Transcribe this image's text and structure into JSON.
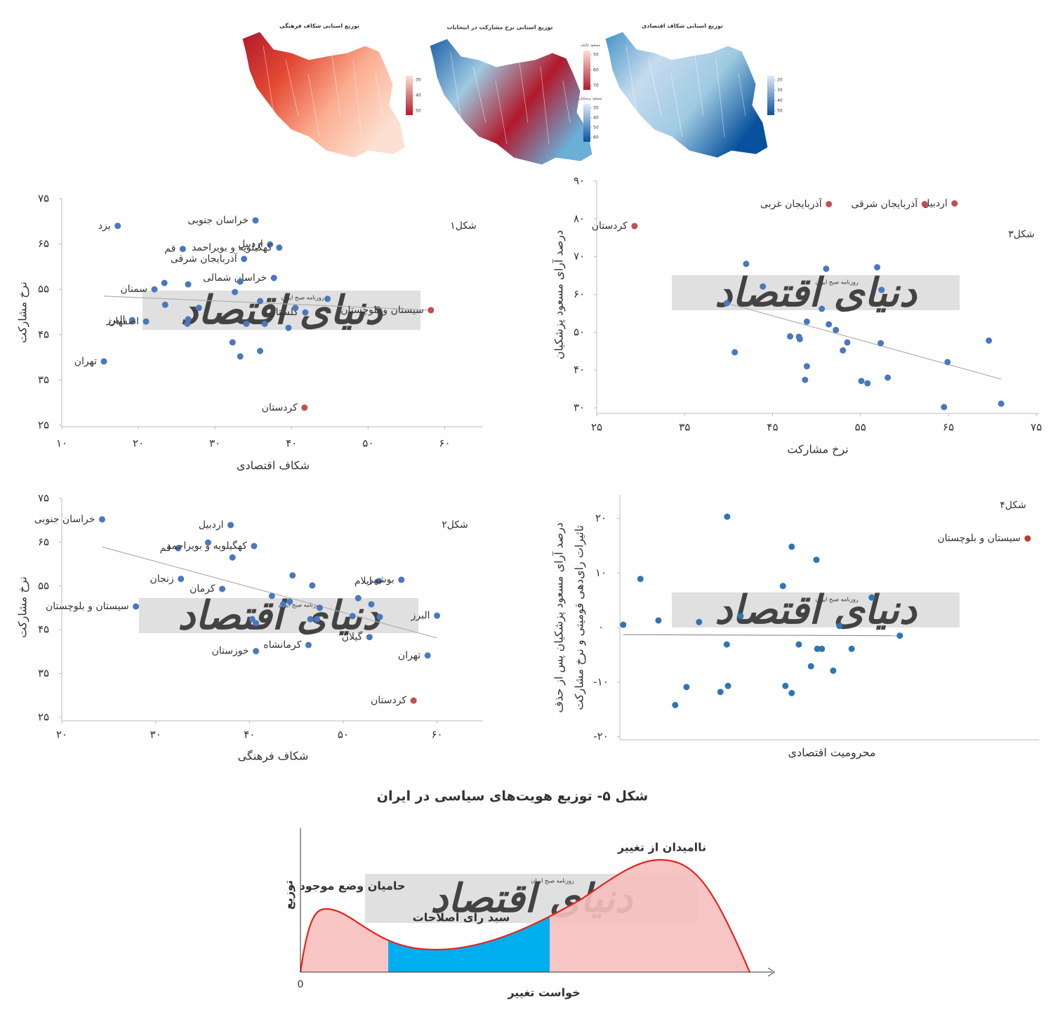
{
  "watermark": "دنیای اقتصاد",
  "watermark_sub": "روزنامه صبح ایران",
  "chart_data": [
    {
      "type": "map",
      "title": "توزیع استانی شکاف فرهنگی",
      "colors": [
        "#b2182b",
        "#e34a33",
        "#fcae91",
        "#fde0d2"
      ],
      "colorbars": [
        {
          "ticks": [
            30,
            40,
            50
          ],
          "colors": [
            "#fde0d2",
            "#b2182b"
          ]
        }
      ]
    },
    {
      "type": "map",
      "title": "توزیع استانی نرخ مشارکت در انتخابات",
      "colors": [
        "#1f5fa8",
        "#9ecae1",
        "#b2182b",
        "#6baed6"
      ],
      "colorbars": [
        {
          "title": "مسعود جلیلی",
          "ticks": [
            50,
            60,
            70
          ],
          "colors": [
            "#fde0d2",
            "#b2182b"
          ]
        },
        {
          "title": "مسعود پزشکیان",
          "ticks": [
            30,
            40,
            50,
            60
          ],
          "colors": [
            "#deebf7",
            "#08519c"
          ]
        }
      ]
    },
    {
      "type": "map",
      "title": "توزیع استانی شکاف اقتصادی",
      "colors": [
        "#4292c6",
        "#c6dbef",
        "#9ecae1",
        "#08519c"
      ],
      "colorbars": [
        {
          "ticks": [
            20,
            30,
            40,
            50
          ],
          "colors": [
            "#deebf7",
            "#08519c"
          ]
        }
      ]
    },
    {
      "type": "scatter",
      "figure": "شکل۱",
      "xlabel": "شکاف اقتصادی",
      "ylabel": "نرخ مشارکت",
      "xlim": [
        10,
        65
      ],
      "ylim": [
        25,
        75
      ],
      "xticks": [
        {
          "value": 10,
          "label": "۱۰"
        },
        {
          "value": 20,
          "label": "۲۰"
        },
        {
          "value": 30,
          "label": "۳۰"
        },
        {
          "value": 40,
          "label": "۴۰"
        },
        {
          "value": 50,
          "label": "۵۰"
        },
        {
          "value": 60,
          "label": "۶۰"
        }
      ],
      "yticks": [
        {
          "value": 25,
          "label": "۲۵"
        },
        {
          "value": 35,
          "label": "۳۵"
        },
        {
          "value": 45,
          "label": "۴۵"
        },
        {
          "value": 55,
          "label": "۵۵"
        },
        {
          "value": 65,
          "label": "۶۵"
        },
        {
          "value": 75,
          "label": "۷۵"
        }
      ],
      "series": [
        {
          "color": "#4a78bd",
          "x": [
            17.3,
            35.3,
            25.8,
            37.2,
            38.4,
            33.8,
            22.1,
            37.7,
            41.8,
            19.2,
            21.0,
            15.5,
            23.4,
            26.5,
            23.5,
            27.9,
            26.5,
            26.4,
            32.6,
            33.3,
            35.9,
            34.1,
            36.5,
            39.6,
            40.5,
            44.7,
            32.3,
            33.3,
            35.9
          ],
          "values": [
            69.0,
            70.2,
            63.9,
            64.9,
            64.2,
            61.7,
            55.0,
            57.5,
            49.9,
            48.2,
            47.9,
            39.1,
            56.4,
            56.1,
            51.6,
            50.9,
            48.4,
            47.4,
            54.4,
            56.7,
            52.4,
            47.4,
            47.4,
            46.5,
            50.9,
            52.9,
            43.3,
            40.2,
            41.4
          ],
          "labels": [
            "یزد",
            "خراسان جنوبی",
            "قم",
            "اردبیل",
            "کهگیلویه و بویراحمد",
            "آذربایجان شرقی",
            "سمنان",
            "خراسان شمالی",
            "گلستان",
            "البرز",
            "اصفهان",
            "تهران",
            null,
            null,
            null,
            null,
            null,
            null,
            null,
            null,
            null,
            null,
            null,
            null,
            null,
            null,
            null,
            null,
            null
          ]
        },
        {
          "color": "#c0504d",
          "x": [
            58.2,
            41.7
          ],
          "values": [
            50.4,
            28.9
          ],
          "labels": [
            "سیستان و بلوچستان",
            "کردستان"
          ]
        }
      ],
      "trend": {
        "color": "#b0b0b0",
        "x": [
          15.5,
          58.2
        ],
        "values": [
          53.5,
          50.4
        ]
      }
    },
    {
      "type": "scatter",
      "figure": "شکل۳",
      "xlabel": "نرخ مشارکت",
      "ylabel": "درصد آرای مسعود پزشکیان",
      "xlim": [
        25,
        75.3
      ],
      "ylim": [
        28.9,
        90
      ],
      "xticks": [
        {
          "value": 25,
          "label": "۲۵"
        },
        {
          "value": 35,
          "label": "۳۵"
        },
        {
          "value": 45,
          "label": "۴۵"
        },
        {
          "value": 55,
          "label": "۵۵"
        },
        {
          "value": 65,
          "label": "۶۵"
        },
        {
          "value": 75,
          "label": "۷۵"
        }
      ],
      "yticks": [
        {
          "value": 30,
          "label": "۳۰"
        },
        {
          "value": 40,
          "label": "۴۰"
        },
        {
          "value": 50,
          "label": "۵۰"
        },
        {
          "value": 60,
          "label": "۶۰"
        },
        {
          "value": 70,
          "label": "۷۰"
        },
        {
          "value": 80,
          "label": "۸۰"
        },
        {
          "value": 90,
          "label": "۹۰"
        }
      ],
      "series": [
        {
          "color": "#4a78bd",
          "x": [
            42.0,
            51.1,
            56.9,
            43.9,
            57.4,
            39.8,
            50.6,
            48.9,
            51.4,
            52.2,
            47.0,
            48.0,
            48.1,
            53.5,
            53.0,
            57.3,
            69.6,
            40.7,
            64.9,
            48.9,
            48.7,
            55.1,
            55.8,
            58.1,
            64.5,
            71.0
          ],
          "values": [
            68.1,
            66.8,
            67.2,
            62.1,
            61.2,
            57.7,
            56.2,
            52.8,
            52.1,
            50.6,
            48.9,
            48.8,
            48.2,
            47.3,
            45.2,
            47.1,
            47.8,
            44.7,
            42.1,
            41.0,
            37.4,
            37.1,
            36.5,
            38.0,
            30.2,
            31.1
          ]
        },
        {
          "color": "#c0504d",
          "x": [
            65.7,
            62.3,
            51.4,
            29.3
          ],
          "values": [
            84.1,
            83.9,
            83.9,
            78.1
          ],
          "labels": [
            "اردبیل",
            "آذربایجان شرقی",
            "آذربایجان غربی",
            "کردستان"
          ]
        }
      ],
      "trend": {
        "color": "#b0b0b0",
        "x": [
          39.8,
          71.0
        ],
        "values": [
          57.7,
          37.6
        ]
      }
    },
    {
      "type": "scatter",
      "figure": "شکل۲",
      "xlabel": "شکاف فرهنگی",
      "ylabel": "نرخ مشارکت",
      "xlim": [
        20,
        64.9
      ],
      "ylim": [
        24.5,
        75
      ],
      "xticks": [
        {
          "value": 20,
          "label": "۲۰"
        },
        {
          "value": 30,
          "label": "۳۰"
        },
        {
          "value": 40,
          "label": "۴۰"
        },
        {
          "value": 50,
          "label": "۵۰"
        },
        {
          "value": 60,
          "label": "۶۰"
        }
      ],
      "yticks": [
        {
          "value": 25,
          "label": "۲۵"
        },
        {
          "value": 35,
          "label": "۳۵"
        },
        {
          "value": 45,
          "label": "۴۵"
        },
        {
          "value": 55,
          "label": "۵۵"
        },
        {
          "value": 65,
          "label": "۶۵"
        },
        {
          "value": 75,
          "label": "۷۵"
        }
      ],
      "series": [
        {
          "color": "#4a78bd",
          "x": [
            24.3,
            38.0,
            32.4,
            40.5,
            53.8,
            56.2,
            32.7,
            37.1,
            27.9,
            60.0,
            59.0,
            52.8,
            46.3,
            40.7,
            35.6,
            38.2,
            44.6,
            46.7,
            42.4,
            44.3,
            43.6,
            47.5,
            51.6,
            53.0,
            40.3,
            40.7,
            46.5,
            47.2,
            51.0,
            53.9
          ],
          "values": [
            70.2,
            68.9,
            63.6,
            64.1,
            56.1,
            56.4,
            56.6,
            54.3,
            50.3,
            48.2,
            39.1,
            43.3,
            41.5,
            40.1,
            64.9,
            61.5,
            57.4,
            55.1,
            52.7,
            51.4,
            50.8,
            50.0,
            52.2,
            50.8,
            47.4,
            46.5,
            47.4,
            47.4,
            48.1,
            47.9
          ],
          "labels": [
            "خراسان جنوبی",
            "اردبیل",
            "قم",
            "کهگیلویه و بویراحمد",
            "ایلام",
            "بوشهر",
            "زنجان",
            "کرمان",
            "سیستان و بلوچستان",
            "البرز",
            "تهران",
            "گیلان",
            "کرمانشاه",
            "خوزستان",
            null,
            null,
            null,
            null,
            null,
            null,
            null,
            null,
            null,
            null,
            null,
            null,
            null,
            null,
            null,
            null
          ]
        },
        {
          "color": "#c0504d",
          "x": [
            57.5
          ],
          "values": [
            28.8
          ],
          "labels": [
            "کردستان"
          ]
        }
      ],
      "trend": {
        "color": "#b0b0b0",
        "x": [
          24.3,
          60.0
        ],
        "values": [
          63.9,
          43.1
        ]
      }
    },
    {
      "type": "scatter",
      "figure": "شکل۴",
      "xlabel": "محرومیت اقتصادی",
      "ylabel": [
        "درصد آرای مسعود پزشکیان پس از حذف",
        "تاثیرات رای‌دهی قومیتی و نرخ مشارکت"
      ],
      "xlim": [
        0,
        100
      ],
      "ylim": [
        -20.3,
        24.3
      ],
      "yticks": [
        {
          "value": -20,
          "label": "-۲۰"
        },
        {
          "value": -10,
          "label": "-۱۰"
        },
        {
          "value": 0,
          "label": "۰"
        },
        {
          "value": 10,
          "label": "۱۰"
        },
        {
          "value": 20,
          "label": "۲۰"
        }
      ],
      "series": [
        {
          "color": "#2e75b6",
          "x": [
            25.6,
            41.0,
            46.9,
            4.9,
            38.9,
            60.1,
            28.8,
            9.2,
            18.9,
            0.8,
            52.4,
            66.8,
            25.5,
            42.7,
            47.1,
            48.2,
            55.3,
            45.6,
            50.9,
            15.9,
            25.8,
            39.5,
            24.0,
            41.0,
            13.2
          ],
          "values": [
            20.3,
            14.8,
            12.4,
            8.9,
            7.6,
            5.5,
            2.1,
            1.3,
            1.0,
            0.5,
            0.3,
            -1.5,
            -3.1,
            -3.1,
            -3.9,
            -3.9,
            -3.9,
            -7.1,
            -7.9,
            -10.9,
            -10.7,
            -10.7,
            -11.8,
            -12.0,
            -14.2
          ]
        },
        {
          "color": "#c0392b",
          "x": [
            97.3
          ],
          "values": [
            16.3
          ],
          "labels": [
            "سیستان و بلوچستان"
          ]
        }
      ],
      "trend": {
        "color": "#8c8c8c",
        "x": [
          0.8,
          66.8
        ],
        "values": [
          -1.3,
          -1.5
        ]
      }
    },
    {
      "type": "area",
      "title": "شکل ۵- توزیع هویت‌های سیاسی در ایران",
      "xlabel": "خواست تغییر",
      "ylabel": "توزیع",
      "origin": "0",
      "annotations": [
        "حامیان وضع موجود",
        "سبد رای اصلاحات",
        "ناامیدان از تغییر"
      ],
      "colors": [
        "#f7bfbf",
        "#00aeef",
        "#e3261c"
      ]
    }
  ]
}
